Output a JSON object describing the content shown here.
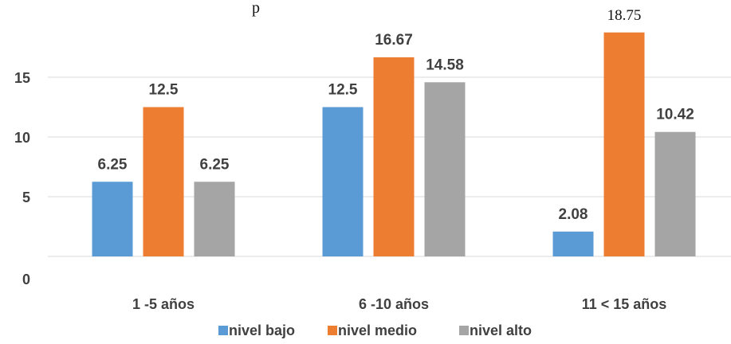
{
  "title_fragment": "p",
  "chart_data": {
    "type": "bar",
    "categories": [
      "1 -5 años",
      "6 -10 años",
      "11 < 15 años"
    ],
    "series": [
      {
        "name": "nivel bajo",
        "color": "#5B9BD5",
        "values": [
          6.25,
          12.5,
          2.08
        ]
      },
      {
        "name": "nivel medio",
        "color": "#ED7D31",
        "values": [
          12.5,
          16.67,
          18.75
        ]
      },
      {
        "name": "nivel alto",
        "color": "#A5A5A5",
        "values": [
          6.25,
          14.58,
          10.42
        ]
      }
    ],
    "data_labels": [
      [
        "6.25",
        "12.5",
        "2.08"
      ],
      [
        "12.5",
        "16.67",
        "18.75"
      ],
      [
        "6.25",
        "14.58",
        "10.42"
      ]
    ],
    "y_ticks": [
      0,
      5,
      10,
      15
    ],
    "ylim": [
      0,
      20
    ],
    "grid": true,
    "legend": "bottom"
  }
}
